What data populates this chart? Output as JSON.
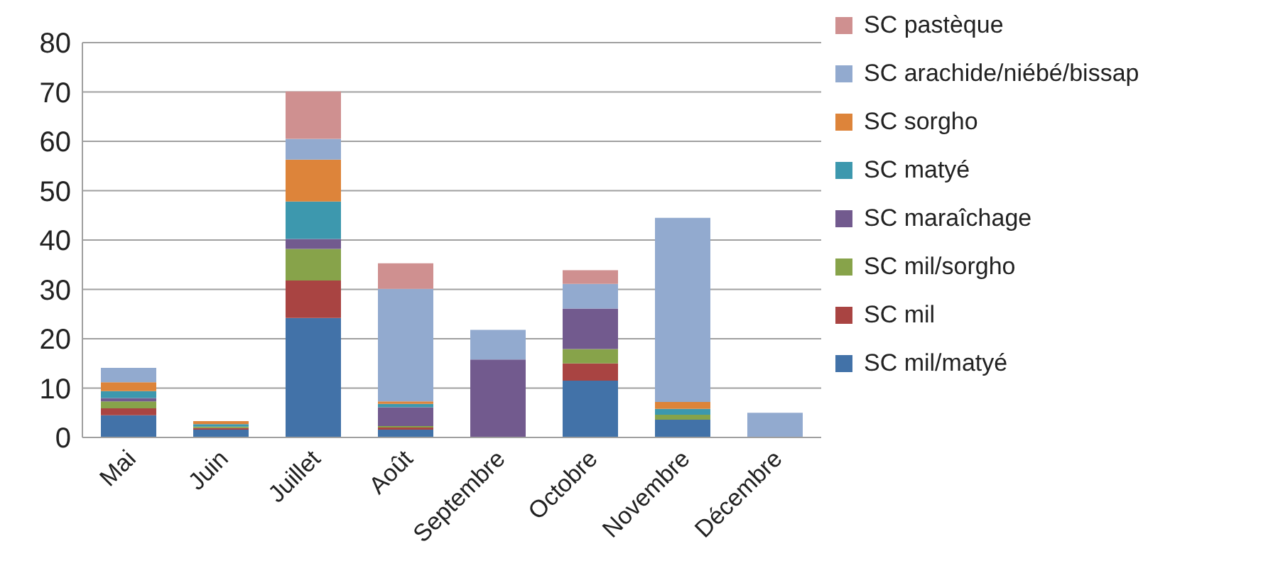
{
  "chart_data": {
    "type": "bar",
    "stacked": true,
    "categories": [
      "Mai",
      "Juin",
      "Juillet",
      "Août",
      "Septembre",
      "Octobre",
      "Novembre",
      "Décembre"
    ],
    "series": [
      {
        "name": "SC mil/matyé",
        "color": "#4272a8",
        "values": [
          4.5,
          1.6,
          24.2,
          1.6,
          0,
          11.5,
          3.6,
          0
        ]
      },
      {
        "name": "SC mil",
        "color": "#a94442",
        "values": [
          1.4,
          0.3,
          7.6,
          0.4,
          0,
          3.5,
          0,
          0
        ]
      },
      {
        "name": "SC mil/sorgho",
        "color": "#87a34a",
        "values": [
          1.4,
          0.3,
          6.4,
          0.3,
          0,
          2.9,
          1.0,
          0
        ]
      },
      {
        "name": "SC maraîchage",
        "color": "#725a8e",
        "values": [
          0.7,
          0,
          2.0,
          3.8,
          15.8,
          8.2,
          0,
          0
        ]
      },
      {
        "name": "SC matyé",
        "color": "#3d98ae",
        "values": [
          1.4,
          0.5,
          7.6,
          0.7,
          0,
          0,
          1.2,
          0
        ]
      },
      {
        "name": "SC sorgho",
        "color": "#dd843a",
        "values": [
          1.8,
          0.6,
          8.5,
          0.5,
          0,
          0,
          1.4,
          0
        ]
      },
      {
        "name": "SC arachide/niébé/bissap",
        "color": "#92aacf",
        "values": [
          2.9,
          0,
          4.2,
          22.8,
          6.0,
          5.0,
          37.3,
          5.0
        ]
      },
      {
        "name": "SC pastèque",
        "color": "#cf9090",
        "values": [
          0,
          0,
          9.6,
          5.2,
          0,
          2.8,
          0,
          0
        ]
      }
    ],
    "ylim": [
      0,
      80
    ],
    "yticks": [
      0,
      10,
      20,
      30,
      40,
      50,
      60,
      70,
      80
    ],
    "grid": "y",
    "legend": "right"
  }
}
